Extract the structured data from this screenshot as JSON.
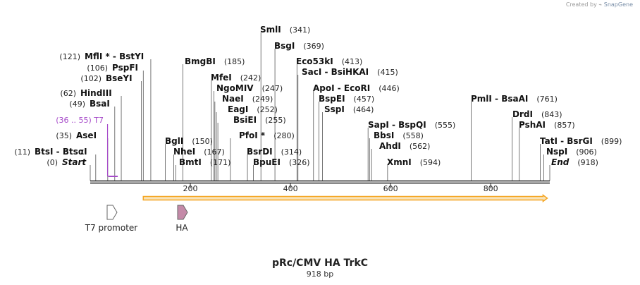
{
  "credit": {
    "prefix": "Created by",
    "brand": "SnapGene"
  },
  "map": {
    "name": "pRc/CMV HA TrkC",
    "length_label": "918 bp",
    "length": 918,
    "backbone_color": "#222222",
    "ticks": [
      {
        "value": 200,
        "label": "200"
      },
      {
        "value": 400,
        "label": "400"
      },
      {
        "value": 600,
        "label": "600"
      },
      {
        "value": 800,
        "label": "800"
      }
    ],
    "sites": [
      {
        "name": "Start",
        "pos": 0,
        "pos_label": "(0)",
        "italic": true
      },
      {
        "name": "BtsI - BtsαI",
        "pos": 11,
        "pos_label": "(11)"
      },
      {
        "name": "AseI",
        "pos": 35,
        "pos_label": "(35)"
      },
      {
        "name": "BsaI",
        "pos": 49,
        "pos_label": "(49)"
      },
      {
        "name": "HindIII",
        "pos": 62,
        "pos_label": "(62)"
      },
      {
        "name": "BseYI",
        "pos": 102,
        "pos_label": "(102)"
      },
      {
        "name": "PspFI",
        "pos": 106,
        "pos_label": "(106)"
      },
      {
        "name": "MflI * - BstYI",
        "pos": 121,
        "pos_label": "(121)"
      },
      {
        "name": "BglI",
        "pos": 150,
        "pos_label": "(150)"
      },
      {
        "name": "NheI",
        "pos": 167,
        "pos_label": "(167)"
      },
      {
        "name": "BmtI",
        "pos": 171,
        "pos_label": "(171)"
      },
      {
        "name": "BmgBI",
        "pos": 185,
        "pos_label": "(185)"
      },
      {
        "name": "MfeI",
        "pos": 242,
        "pos_label": "(242)"
      },
      {
        "name": "NgoMIV",
        "pos": 247,
        "pos_label": "(247)"
      },
      {
        "name": "NaeI",
        "pos": 249,
        "pos_label": "(249)"
      },
      {
        "name": "EagI",
        "pos": 252,
        "pos_label": "(252)"
      },
      {
        "name": "BsiEI",
        "pos": 255,
        "pos_label": "(255)"
      },
      {
        "name": "PfoI *",
        "pos": 280,
        "pos_label": "(280)"
      },
      {
        "name": "BsrDI",
        "pos": 314,
        "pos_label": "(314)"
      },
      {
        "name": "BpuEI",
        "pos": 326,
        "pos_label": "(326)"
      },
      {
        "name": "SmlI",
        "pos": 341,
        "pos_label": "(341)"
      },
      {
        "name": "BsgI",
        "pos": 369,
        "pos_label": "(369)"
      },
      {
        "name": "Eco53kI",
        "pos": 413,
        "pos_label": "(413)"
      },
      {
        "name": "SacI - BsiHKAI",
        "pos": 415,
        "pos_label": "(415)"
      },
      {
        "name": "ApoI - EcoRI",
        "pos": 446,
        "pos_label": "(446)"
      },
      {
        "name": "BspEI",
        "pos": 457,
        "pos_label": "(457)"
      },
      {
        "name": "SspI",
        "pos": 464,
        "pos_label": "(464)"
      },
      {
        "name": "SapI - BspQI",
        "pos": 555,
        "pos_label": "(555)"
      },
      {
        "name": "BbsI",
        "pos": 558,
        "pos_label": "(558)"
      },
      {
        "name": "AhdI",
        "pos": 562,
        "pos_label": "(562)"
      },
      {
        "name": "XmnI",
        "pos": 594,
        "pos_label": "(594)"
      },
      {
        "name": "PmlI - BsaAI",
        "pos": 761,
        "pos_label": "(761)"
      },
      {
        "name": "DrdI",
        "pos": 843,
        "pos_label": "(843)"
      },
      {
        "name": "PshAI",
        "pos": 857,
        "pos_label": "(857)"
      },
      {
        "name": "TatI - BsrGI",
        "pos": 899,
        "pos_label": "(899)"
      },
      {
        "name": "NspI",
        "pos": 906,
        "pos_label": "(906)"
      },
      {
        "name": "End",
        "pos": 918,
        "pos_label": "(918)",
        "italic": true
      }
    ],
    "primer": {
      "name": "T7",
      "range_label": "(36 .. 55)",
      "start": 36,
      "end": 55,
      "color": "#a64ac9"
    },
    "orf": {
      "start": 106,
      "end": 913,
      "color": "#f5a623",
      "fill": "#f8e3b8"
    },
    "features": [
      {
        "name": "T7 promoter",
        "icon": "arrow-outline",
        "pos": 36,
        "color": "#ffffff"
      },
      {
        "name": "HA",
        "icon": "arrow-filled",
        "pos": 181,
        "color": "#c48aa8"
      }
    ]
  }
}
